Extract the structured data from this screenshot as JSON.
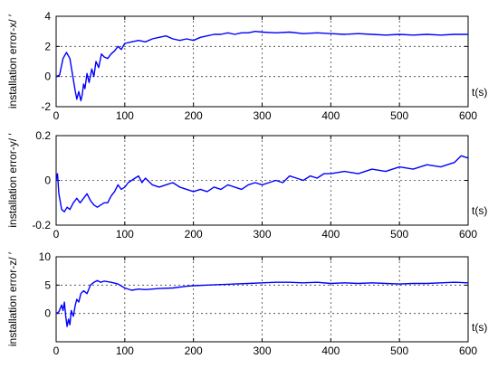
{
  "chart_data": [
    {
      "type": "line",
      "ylabel": "installation error-x/ ′",
      "xlabel": "t(s)",
      "xlim": [
        0,
        600
      ],
      "ylim": [
        -2,
        4
      ],
      "xticks": [
        "0",
        "100",
        "200",
        "300",
        "400",
        "500",
        "600"
      ],
      "yticks": [
        "-2",
        "0",
        "2",
        "4"
      ],
      "grid": true,
      "series": [
        {
          "x": [
            0,
            5,
            10,
            15,
            20,
            25,
            28,
            30,
            33,
            36,
            38,
            40,
            42,
            45,
            48,
            52,
            55,
            58,
            62,
            66,
            70,
            75,
            80,
            85,
            90,
            95,
            100,
            110,
            120,
            130,
            140,
            150,
            160,
            170,
            180,
            190,
            200,
            210,
            220,
            230,
            240,
            250,
            260,
            270,
            280,
            290,
            300,
            320,
            340,
            360,
            380,
            400,
            420,
            440,
            460,
            480,
            500,
            520,
            540,
            560,
            580,
            600
          ],
          "values": [
            0,
            0.1,
            1.2,
            1.6,
            1.2,
            -0.2,
            -1.0,
            -1.5,
            -1.0,
            -1.6,
            -1.2,
            -0.5,
            -0.8,
            0.2,
            -0.4,
            0.5,
            0.0,
            1.0,
            0.6,
            1.5,
            1.3,
            1.2,
            1.5,
            1.7,
            2.0,
            1.8,
            2.2,
            2.3,
            2.4,
            2.3,
            2.5,
            2.6,
            2.7,
            2.5,
            2.4,
            2.5,
            2.4,
            2.6,
            2.7,
            2.8,
            2.8,
            2.9,
            2.8,
            2.9,
            2.9,
            3.0,
            2.95,
            2.9,
            2.95,
            2.85,
            2.9,
            2.85,
            2.8,
            2.85,
            2.8,
            2.75,
            2.8,
            2.75,
            2.8,
            2.75,
            2.8,
            2.8
          ]
        }
      ]
    },
    {
      "type": "line",
      "ylabel": "installation error-y/ ′",
      "xlabel": "t(s)",
      "xlim": [
        0,
        600
      ],
      "ylim": [
        -0.2,
        0.2
      ],
      "xticks": [
        "0",
        "100",
        "200",
        "300",
        "400",
        "500",
        "600"
      ],
      "yticks": [
        "-0.2",
        "0",
        "0.2"
      ],
      "grid": true,
      "series": [
        {
          "x": [
            0,
            2,
            4,
            8,
            12,
            16,
            20,
            25,
            30,
            35,
            40,
            45,
            50,
            55,
            60,
            65,
            70,
            75,
            80,
            85,
            90,
            95,
            100,
            105,
            110,
            115,
            120,
            125,
            130,
            140,
            150,
            160,
            170,
            180,
            190,
            200,
            210,
            220,
            230,
            240,
            250,
            260,
            270,
            280,
            290,
            300,
            310,
            320,
            330,
            340,
            350,
            360,
            370,
            380,
            390,
            400,
            420,
            440,
            460,
            480,
            500,
            520,
            540,
            560,
            580,
            590,
            600
          ],
          "values": [
            0,
            0.03,
            -0.06,
            -0.13,
            -0.14,
            -0.12,
            -0.13,
            -0.1,
            -0.08,
            -0.1,
            -0.08,
            -0.06,
            -0.09,
            -0.11,
            -0.12,
            -0.11,
            -0.1,
            -0.1,
            -0.07,
            -0.05,
            -0.02,
            -0.04,
            -0.03,
            -0.01,
            0.0,
            0.01,
            0.02,
            -0.01,
            0.01,
            -0.02,
            -0.03,
            -0.02,
            -0.01,
            -0.03,
            -0.04,
            -0.05,
            -0.04,
            -0.05,
            -0.03,
            -0.04,
            -0.02,
            -0.03,
            -0.04,
            -0.02,
            -0.01,
            -0.02,
            -0.01,
            0.0,
            -0.01,
            0.02,
            0.01,
            0.0,
            0.02,
            0.01,
            0.03,
            0.03,
            0.04,
            0.03,
            0.05,
            0.04,
            0.06,
            0.05,
            0.07,
            0.06,
            0.08,
            0.11,
            0.1
          ]
        }
      ]
    },
    {
      "type": "line",
      "ylabel": "installation error-z/ ′",
      "xlabel": "t(s)",
      "xlim": [
        0,
        600
      ],
      "ylim": [
        -5,
        10
      ],
      "xticks": [
        "0",
        "100",
        "200",
        "300",
        "400",
        "500",
        "600"
      ],
      "yticks": [
        "0",
        "5",
        "10"
      ],
      "grid": true,
      "series": [
        {
          "x": [
            0,
            4,
            8,
            10,
            12,
            14,
            16,
            18,
            20,
            22,
            25,
            28,
            30,
            33,
            36,
            40,
            45,
            50,
            55,
            60,
            65,
            70,
            80,
            90,
            100,
            110,
            120,
            130,
            140,
            150,
            170,
            190,
            200,
            220,
            240,
            260,
            280,
            300,
            320,
            340,
            360,
            380,
            400,
            420,
            440,
            460,
            480,
            500,
            520,
            540,
            560,
            580,
            600
          ],
          "values": [
            0,
            0.3,
            1.5,
            0.5,
            2.0,
            -0.5,
            -2.3,
            -1.0,
            -2.0,
            0.5,
            -0.5,
            1.5,
            2.5,
            2.0,
            3.5,
            4.0,
            3.5,
            5.0,
            5.5,
            5.8,
            5.5,
            5.7,
            5.5,
            5.2,
            4.5,
            4.1,
            4.3,
            4.2,
            4.3,
            4.4,
            4.5,
            4.8,
            4.9,
            5.0,
            5.1,
            5.2,
            5.3,
            5.4,
            5.5,
            5.5,
            5.4,
            5.5,
            5.3,
            5.4,
            5.3,
            5.4,
            5.3,
            5.2,
            5.3,
            5.3,
            5.4,
            5.5,
            5.4
          ]
        }
      ]
    }
  ],
  "colors": {
    "series": "#0000ff",
    "axis": "#000000"
  }
}
